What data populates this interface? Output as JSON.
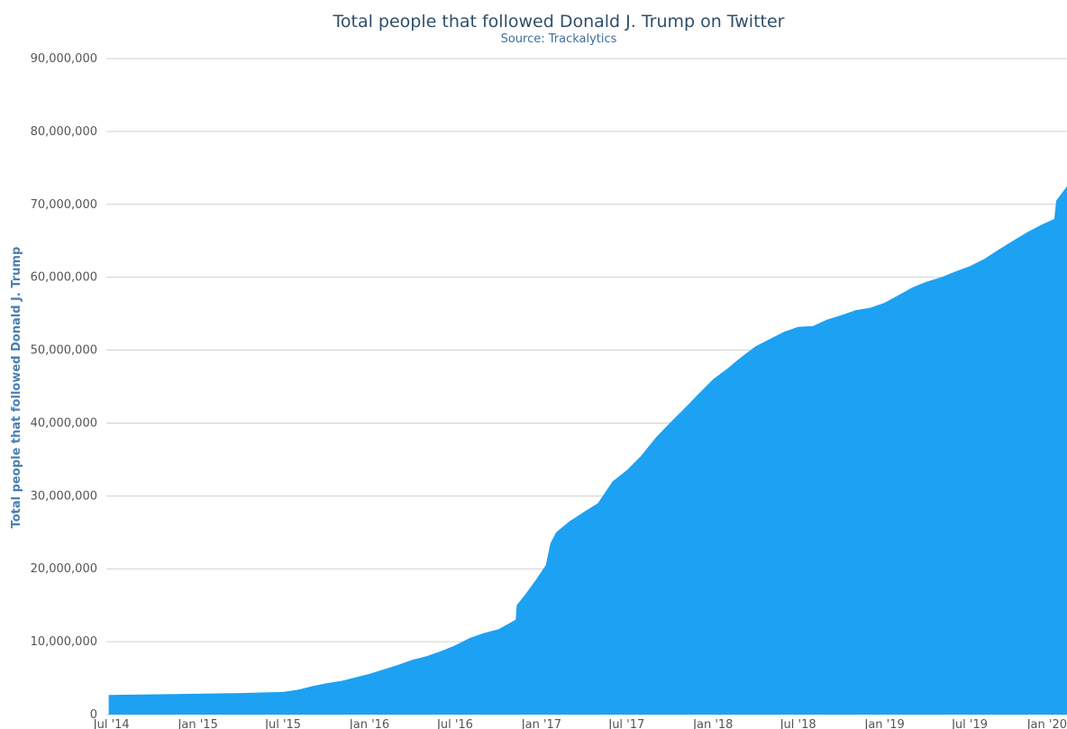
{
  "chart_data": {
    "type": "area",
    "title": "Total people that followed Donald J. Trump on Twitter",
    "subtitle": "Source: Trackalytics",
    "ylabel": "Total people that followed Donald J. Trump",
    "xlabel": "",
    "ylim": [
      0,
      90000000
    ],
    "yticks": [
      0,
      10000000,
      20000000,
      30000000,
      40000000,
      50000000,
      60000000,
      70000000,
      80000000,
      90000000
    ],
    "ytick_labels": [
      "0",
      "10,000,000",
      "20,000,000",
      "30,000,000",
      "40,000,000",
      "50,000,000",
      "60,000,000",
      "70,000,000",
      "80,000,000",
      "90,000,000"
    ],
    "xlim": [
      "2014-06-20",
      "2020-01-24"
    ],
    "xticks": [
      {
        "date": "2014-07-01",
        "label": "Jul '14"
      },
      {
        "date": "2015-01-01",
        "label": "Jan '15"
      },
      {
        "date": "2015-07-01",
        "label": "Jul '15"
      },
      {
        "date": "2016-01-01",
        "label": "Jan '16"
      },
      {
        "date": "2016-07-01",
        "label": "Jul '16"
      },
      {
        "date": "2017-01-01",
        "label": "Jan '17"
      },
      {
        "date": "2017-07-01",
        "label": "Jul '17"
      },
      {
        "date": "2018-01-01",
        "label": "Jan '18"
      },
      {
        "date": "2018-07-01",
        "label": "Jul '18"
      },
      {
        "date": "2019-01-01",
        "label": "Jan '19"
      },
      {
        "date": "2019-07-01",
        "label": "Jul '19"
      },
      {
        "date": "2020-01-01",
        "label": "Jan '20"
      }
    ],
    "grid": true,
    "legend": "none",
    "color": "#1da1f2",
    "series": [
      {
        "x": [
          "2014-06-25",
          "2014-09-01",
          "2015-01-01",
          "2015-04-01",
          "2015-07-01",
          "2015-08-01",
          "2015-09-01",
          "2015-10-01",
          "2015-11-01",
          "2016-01-01",
          "2016-02-01",
          "2016-03-01",
          "2016-04-01",
          "2016-05-01",
          "2016-06-01",
          "2016-07-01",
          "2016-08-01",
          "2016-09-01",
          "2016-10-01",
          "2016-11-07",
          "2016-11-09",
          "2016-12-01",
          "2016-12-20",
          "2017-01-10",
          "2017-01-20",
          "2017-02-01",
          "2017-03-01",
          "2017-04-01",
          "2017-05-01",
          "2017-06-01",
          "2017-07-01",
          "2017-08-01",
          "2017-09-01",
          "2017-10-01",
          "2017-11-01",
          "2017-12-01",
          "2018-01-01",
          "2018-02-01",
          "2018-03-01",
          "2018-04-01",
          "2018-05-01",
          "2018-06-01",
          "2018-07-01",
          "2018-08-01",
          "2018-09-01",
          "2018-10-01",
          "2018-11-01",
          "2018-12-01",
          "2019-01-01",
          "2019-02-01",
          "2019-03-01",
          "2019-04-01",
          "2019-05-01",
          "2019-06-01",
          "2019-07-01",
          "2019-08-01",
          "2019-09-01",
          "2019-10-01",
          "2019-11-01",
          "2019-12-01",
          "2019-12-28",
          "2020-01-01",
          "2020-01-24"
        ],
        "y": [
          2700000,
          2750000,
          2850000,
          2950000,
          3100000,
          3400000,
          3900000,
          4300000,
          4600000,
          5600000,
          6200000,
          6800000,
          7500000,
          8000000,
          8700000,
          9500000,
          10500000,
          11200000,
          11700000,
          13000000,
          15000000,
          16800000,
          18500000,
          20500000,
          23500000,
          25000000,
          26500000,
          27800000,
          29000000,
          32000000,
          33500000,
          35500000,
          38000000,
          40000000,
          42000000,
          44000000,
          46000000,
          47500000,
          49000000,
          50500000,
          51500000,
          52500000,
          53200000,
          53300000,
          54200000,
          54800000,
          55500000,
          55800000,
          56500000,
          57600000,
          58600000,
          59400000,
          60000000,
          60800000,
          61500000,
          62500000,
          63800000,
          65000000,
          66200000,
          67200000,
          68000000,
          70500000,
          72500000
        ]
      }
    ]
  }
}
